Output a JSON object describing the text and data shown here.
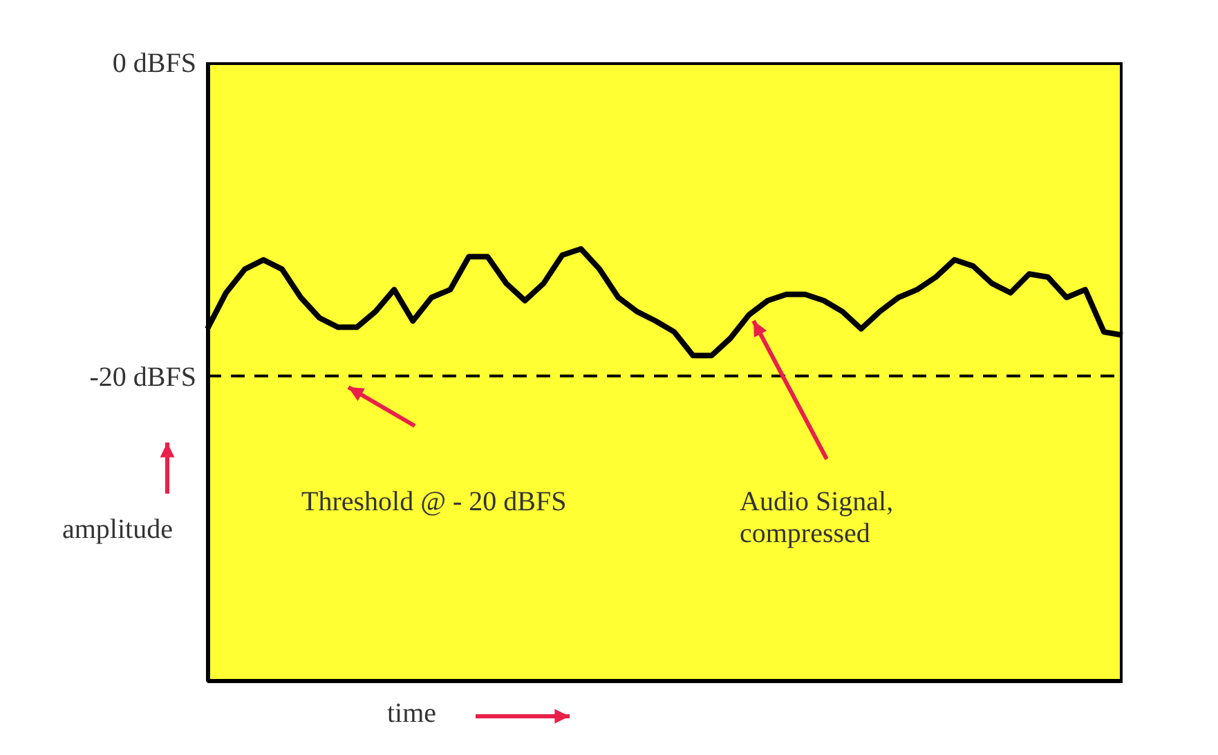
{
  "chart_data": {
    "type": "line",
    "xlabel": "time",
    "ylabel": "amplitude",
    "categories": [
      null,
      null,
      null,
      null,
      null,
      null,
      null,
      null,
      null,
      null,
      null,
      null,
      null,
      null,
      null,
      null,
      null,
      null,
      null,
      null,
      null,
      null,
      null,
      null,
      null,
      null,
      null,
      null,
      null,
      null,
      null,
      null,
      null,
      null,
      null,
      null,
      null,
      null,
      null,
      null,
      null,
      null,
      null,
      null,
      null,
      null,
      null,
      null,
      null,
      null
    ],
    "series": [
      {
        "color": "#000000",
        "values": [
          -17.0,
          -14.7,
          -13.2,
          -12.6,
          -13.2,
          -15.0,
          -16.3,
          -16.9,
          -16.9,
          -15.9,
          -14.5,
          -16.5,
          -15.0,
          -14.5,
          -12.4,
          -12.4,
          -14.1,
          -15.2,
          -14.1,
          -12.3,
          -11.9,
          -13.2,
          -15.0,
          -15.9,
          -16.5,
          -17.2,
          -18.7,
          -18.7,
          -17.6,
          -16.1,
          -15.2,
          -14.8,
          -14.8,
          -15.2,
          -15.9,
          -17.0,
          -15.9,
          -15.0,
          -14.5,
          -13.7,
          -12.6,
          -13.0,
          -14.1,
          -14.7,
          -13.5,
          -13.7,
          -15.0,
          -14.5,
          -17.2,
          -17.4
        ]
      }
    ],
    "ylim": [
      -39.5,
      0
    ],
    "yticks": [
      {
        "value": 0,
        "label": "0 dBFS"
      },
      {
        "value": -20,
        "label": "-20 dBFS"
      }
    ],
    "ref_lines": [
      {
        "axis": "y",
        "value": -20,
        "color": "#000000",
        "line_style": "dashed"
      }
    ],
    "annotations": [
      "Threshold @ - 20 dBFS",
      "Audio Signal, compressed"
    ],
    "tick_labels": "y",
    "grid": false,
    "marker": "none",
    "line_style": "solid"
  }
}
